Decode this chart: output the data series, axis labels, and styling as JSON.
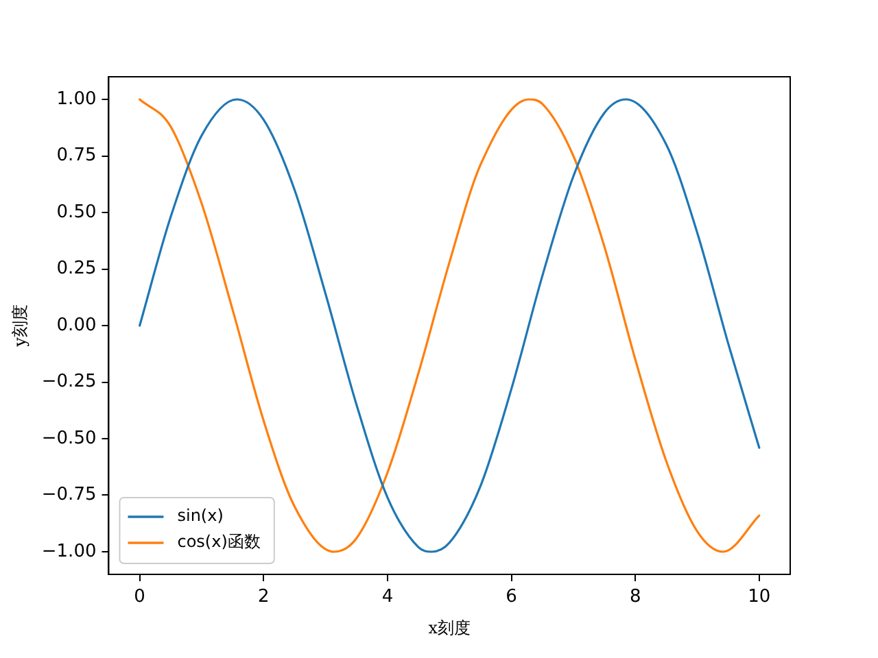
{
  "chart_data": {
    "type": "line",
    "xlabel": "x刻度",
    "ylabel": "y刻度",
    "legend": "bottom left",
    "grid": false,
    "marker": "none",
    "line_style": "solid",
    "xlim": [
      -0.5,
      10.5
    ],
    "xticks": [
      0,
      2,
      4,
      6,
      8,
      10
    ],
    "ylim": [
      -1.1,
      1.1
    ],
    "yticks": [
      {
        "value": -1,
        "label": "−1.00"
      },
      {
        "value": -0.75,
        "label": "−0.75"
      },
      {
        "value": -0.5,
        "label": "−0.50"
      },
      {
        "value": -0.25,
        "label": "−0.25"
      },
      {
        "value": 0,
        "label": "0.00"
      },
      {
        "value": 0.25,
        "label": "0.25"
      },
      {
        "value": 0.5,
        "label": "0.50"
      },
      {
        "value": 0.75,
        "label": "0.75"
      },
      {
        "value": 1,
        "label": "1.00"
      }
    ],
    "series": [
      {
        "name": "sin(x)",
        "color": "#1f77b4",
        "x": [
          0,
          0.5,
          1,
          1.57,
          2,
          2.5,
          3,
          3.5,
          4,
          4.5,
          4.71,
          5,
          5.5,
          6,
          6.5,
          7,
          7.5,
          7.85,
          8.5,
          9,
          9.5,
          10
        ],
        "values": [
          0,
          0.48,
          0.84,
          1,
          0.91,
          0.6,
          0.14,
          -0.35,
          -0.76,
          -0.98,
          -1,
          -0.96,
          -0.71,
          -0.28,
          0.22,
          0.66,
          0.94,
          1,
          0.8,
          0.41,
          -0.08,
          -0.54
        ]
      },
      {
        "name": "cos(x)函数",
        "color": "#ff7f0e",
        "x": [
          0,
          0.5,
          1,
          1.5,
          2,
          2.5,
          3.14,
          3.5,
          4,
          4.5,
          5,
          5.5,
          6.28,
          6.5,
          7,
          7.5,
          8,
          8.5,
          9,
          9.42,
          10
        ],
        "values": [
          1,
          0.88,
          0.54,
          0.07,
          -0.42,
          -0.8,
          -1,
          -0.94,
          -0.65,
          -0.21,
          0.28,
          0.71,
          1,
          0.98,
          0.75,
          0.35,
          -0.15,
          -0.6,
          -0.91,
          -1,
          -0.84
        ]
      }
    ]
  }
}
